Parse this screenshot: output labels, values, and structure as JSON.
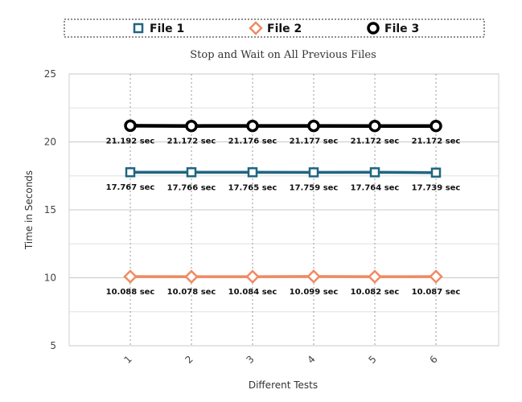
{
  "chart_data": {
    "type": "line",
    "title": "Stop and Wait on All Previous Files",
    "xlabel": "Different Tests",
    "ylabel": "Time in Seconds",
    "categories": [
      "1",
      "2",
      "3",
      "4",
      "5",
      "6"
    ],
    "ylim": [
      5,
      25
    ],
    "yticks": [
      5,
      10,
      15,
      20,
      25
    ],
    "grid": true,
    "legend_position": "top",
    "series": [
      {
        "name": "File 1",
        "values": [
          17.767,
          17.766,
          17.765,
          17.759,
          17.764,
          17.739
        ],
        "labels": [
          "17.767 sec",
          "17.766 sec",
          "17.765 sec",
          "17.759 sec",
          "17.764 sec",
          "17.739 sec"
        ],
        "color": "#1f6680",
        "marker": "square"
      },
      {
        "name": "File 2",
        "values": [
          10.088,
          10.078,
          10.084,
          10.099,
          10.082,
          10.087
        ],
        "labels": [
          "10.088 sec",
          "10.078 sec",
          "10.084 sec",
          "10.099 sec",
          "10.082 sec",
          "10.087 sec"
        ],
        "color": "#f08a62",
        "marker": "diamond"
      },
      {
        "name": "File 3",
        "values": [
          21.192,
          21.172,
          21.176,
          21.177,
          21.172,
          21.172
        ],
        "labels": [
          "21.192 sec",
          "21.172 sec",
          "21.176 sec",
          "21.177 sec",
          "21.172 sec",
          "21.172 sec"
        ],
        "color": "#000000",
        "marker": "circle"
      }
    ]
  }
}
